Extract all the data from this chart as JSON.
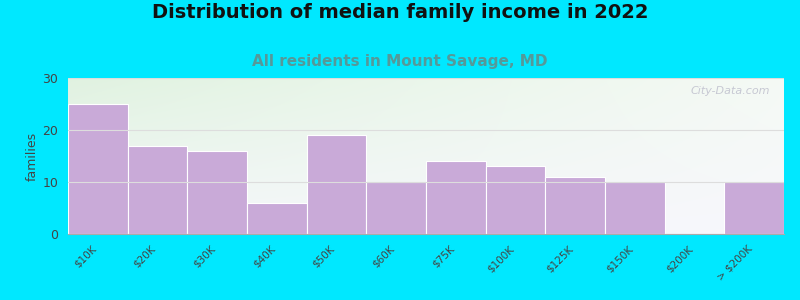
{
  "title": "Distribution of median family income in 2022",
  "subtitle": "All residents in Mount Savage, MD",
  "categories": [
    "$10K",
    "$20K",
    "$30K",
    "$40K",
    "$50K",
    "$60K",
    "$75K",
    "$100K",
    "$125K",
    "$150K",
    "$200K",
    "> $200K"
  ],
  "values": [
    25,
    17,
    16,
    6,
    19,
    10,
    14,
    13,
    11,
    10,
    0,
    10
  ],
  "bar_color": "#c9aad8",
  "bar_edge_color": "#ffffff",
  "background_outer": "#00e8ff",
  "plot_bg_topleft": "#ddeedd",
  "plot_bg_topright": "#eef5ee",
  "plot_bg_bottom": "#f5f5f8",
  "ylabel": "families",
  "ylim": [
    0,
    30
  ],
  "yticks": [
    0,
    10,
    20,
    30
  ],
  "title_fontsize": 14,
  "subtitle_fontsize": 11,
  "subtitle_color": "#559999",
  "watermark": "City-Data.com",
  "watermark_color": "#b8b8c8",
  "grid_color": "#dddddd"
}
